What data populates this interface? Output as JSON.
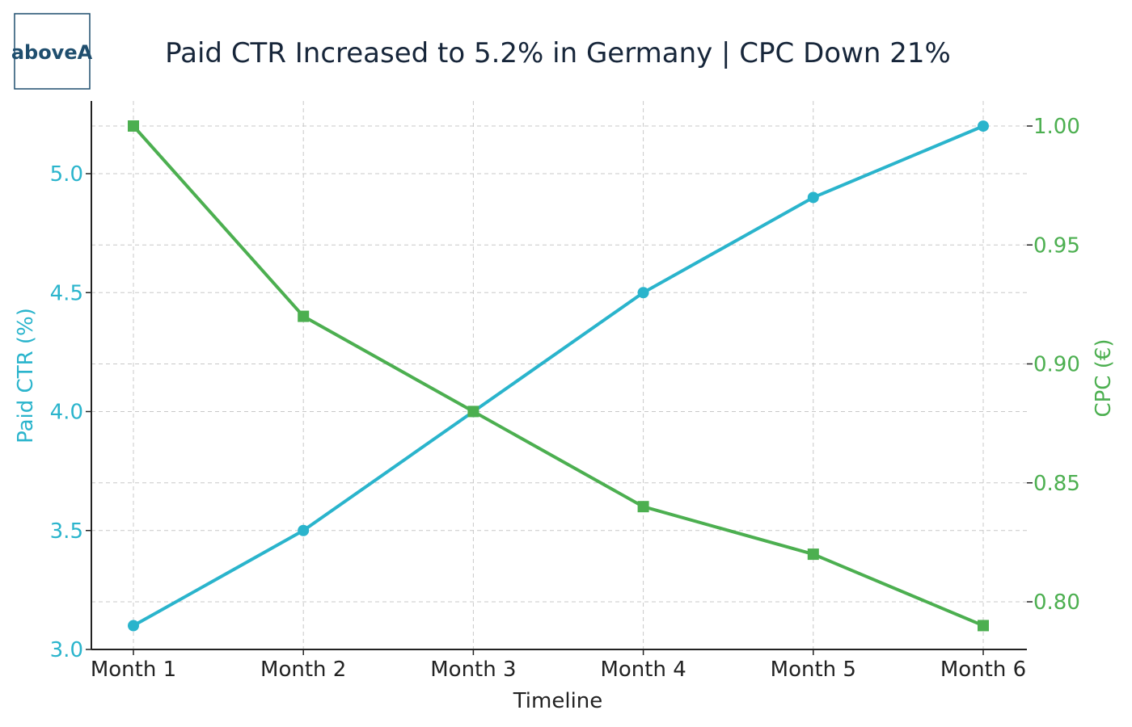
{
  "logo": {
    "text": "aboveA",
    "color": "#1f4e6e"
  },
  "chart_data": {
    "type": "line",
    "title": "Paid CTR Increased to 5.2% in Germany | CPC Down 21%",
    "xlabel": "Timeline",
    "categories": [
      "Month 1",
      "Month 2",
      "Month 3",
      "Month 4",
      "Month 5",
      "Month 6"
    ],
    "y_left": {
      "label": "Paid CTR (%)",
      "ylim": [
        3.0,
        5.25
      ],
      "ticks": [
        3.0,
        3.5,
        4.0,
        4.5,
        5.0
      ],
      "tick_labels": [
        "3.0",
        "3.5",
        "4.0",
        "4.5",
        "5.0"
      ],
      "color": "#2ab4cc"
    },
    "y_right": {
      "label": "CPC (€)",
      "ylim": [
        0.78,
        1.01
      ],
      "ticks": [
        0.8,
        0.85,
        0.9,
        0.95,
        1.0
      ],
      "tick_labels": [
        "0.80",
        "0.85",
        "0.90",
        "0.95",
        "1.00"
      ],
      "color": "#4caf50"
    },
    "series": [
      {
        "axis": "left",
        "values": [
          3.1,
          3.5,
          4.0,
          4.5,
          4.9,
          5.2
        ],
        "color": "#2ab4cc",
        "marker": "circle"
      },
      {
        "axis": "right",
        "values": [
          1.0,
          0.92,
          0.88,
          0.84,
          0.82,
          0.79
        ],
        "color": "#4caf50",
        "marker": "square"
      }
    ],
    "grid": true
  }
}
